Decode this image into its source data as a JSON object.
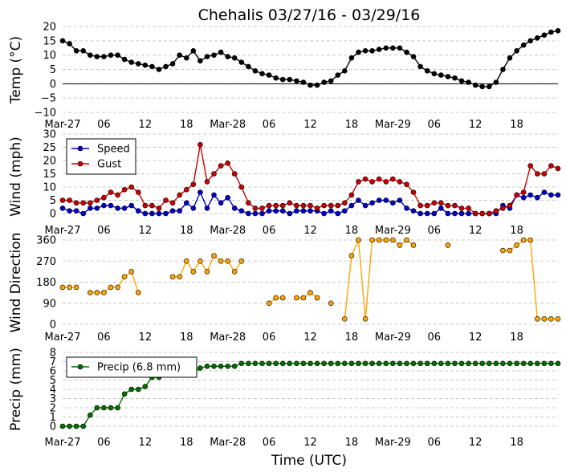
{
  "title": "Chehalis 03/27/16 - 03/29/16",
  "xlabel": "Time (UTC)",
  "x_tick_labels": [
    "Mar-27",
    "06",
    "12",
    "18",
    "Mar-28",
    "06",
    "12",
    "18",
    "Mar-29",
    "06",
    "12",
    "18"
  ],
  "colors": {
    "temp": "#000000",
    "speed": "#0000cc",
    "gust": "#cc0000",
    "direction": "#ffa500",
    "precip": "#007000"
  },
  "chart_data": [
    {
      "type": "line",
      "ylabel": "Temp (°C)",
      "ylim": [
        -10,
        20
      ],
      "yticks": [
        "−10",
        "−5",
        "0",
        "5",
        "10",
        "15",
        "20"
      ],
      "zero_line": true,
      "x_hours": [
        0,
        1,
        2,
        3,
        4,
        5,
        6,
        7,
        8,
        9,
        10,
        11,
        12,
        13,
        14,
        15,
        16,
        17,
        18,
        19,
        20,
        21,
        22,
        23,
        24,
        25,
        26,
        27,
        28,
        29,
        30,
        31,
        32,
        33,
        34,
        35,
        36,
        37,
        38,
        39,
        40,
        41,
        42,
        43,
        44,
        45,
        46,
        47,
        48,
        49,
        50,
        51,
        52,
        53,
        54,
        55,
        56,
        57,
        58,
        59,
        60,
        61,
        62,
        63,
        64,
        65,
        66,
        67,
        68,
        69,
        70,
        71,
        72
      ],
      "series": [
        {
          "values": [
            15.0,
            14.0,
            11.5,
            11.5,
            10.0,
            9.5,
            9.5,
            10.0,
            10.0,
            8.5,
            7.5,
            7.0,
            6.5,
            6.0,
            5.0,
            6.0,
            7.0,
            10.0,
            9.0,
            11.5,
            8.0,
            9.5,
            10.0,
            11.0,
            9.5,
            9.0,
            7.5,
            6.0,
            4.5,
            3.5,
            3.0,
            2.0,
            1.5,
            1.5,
            1.0,
            0.5,
            -0.5,
            -0.5,
            0.5,
            1.0,
            3.0,
            4.5,
            9.0,
            11.0,
            11.5,
            11.5,
            12.0,
            12.5,
            12.5,
            12.5,
            11.0,
            9.5,
            6.0,
            4.5,
            3.5,
            3.0,
            2.5,
            2.0,
            1.0,
            0.5,
            -0.5,
            -1.0,
            -1.0,
            0.5,
            5.0,
            9.0,
            11.5,
            13.5,
            15.0,
            16.0,
            17.0,
            18.0,
            18.5
          ]
        }
      ]
    },
    {
      "type": "line",
      "ylabel": "Wind (mph)",
      "ylim": [
        0,
        30
      ],
      "yticks": [
        "0",
        "5",
        "10",
        "15",
        "20",
        "25",
        "30"
      ],
      "legend": "upper left",
      "x_hours": [
        0,
        1,
        2,
        3,
        4,
        5,
        6,
        7,
        8,
        9,
        10,
        11,
        12,
        13,
        14,
        15,
        16,
        17,
        18,
        19,
        20,
        21,
        22,
        23,
        24,
        25,
        26,
        27,
        28,
        29,
        30,
        31,
        32,
        33,
        34,
        35,
        36,
        37,
        38,
        39,
        40,
        41,
        42,
        43,
        44,
        45,
        46,
        47,
        48,
        49,
        50,
        51,
        52,
        53,
        54,
        55,
        56,
        57,
        58,
        59,
        60,
        61,
        62,
        63,
        64,
        65,
        66,
        67,
        68,
        69,
        70,
        71,
        72
      ],
      "series": [
        {
          "name": "Speed",
          "values": [
            2,
            1,
            1,
            0,
            2,
            2,
            3,
            3,
            2,
            2,
            3,
            1,
            0,
            0,
            0,
            0,
            1,
            1,
            4,
            2,
            8,
            2,
            7,
            4,
            6,
            2,
            1,
            0,
            0,
            0,
            1,
            1,
            1,
            0,
            1,
            1,
            1,
            1,
            0,
            1,
            0,
            1,
            3,
            5,
            3,
            4,
            5,
            5,
            4,
            5,
            2,
            1,
            0,
            0,
            0,
            2,
            0,
            0,
            0,
            0,
            0,
            0,
            0,
            0,
            3,
            2,
            7,
            6,
            7,
            6,
            8,
            7,
            7
          ]
        },
        {
          "name": "Gust",
          "values": [
            5,
            5,
            4,
            4,
            4,
            5,
            6,
            8,
            7,
            9,
            10,
            8,
            3,
            3,
            2,
            5,
            4,
            7,
            9,
            11,
            26,
            12,
            15,
            18,
            19,
            15,
            10,
            4,
            2,
            2,
            3,
            3,
            3,
            4,
            3,
            3,
            3,
            2,
            3,
            3,
            3,
            4,
            7,
            12,
            13,
            12,
            13,
            12,
            13,
            12,
            11,
            8,
            3,
            3,
            4,
            4,
            3,
            3,
            2,
            2,
            0,
            0,
            0,
            1,
            2,
            3,
            7,
            8,
            18,
            15,
            15,
            18,
            17
          ]
        }
      ]
    },
    {
      "type": "scatter",
      "ylabel": "Wind Direction",
      "ylim": [
        0,
        360
      ],
      "yticks": [
        "0",
        "90",
        "180",
        "270",
        "360"
      ],
      "x_hours": [
        0,
        1,
        2,
        3,
        4,
        5,
        6,
        7,
        8,
        9,
        10,
        11,
        12,
        13,
        14,
        15,
        16,
        17,
        18,
        19,
        20,
        21,
        22,
        23,
        24,
        25,
        26,
        27,
        28,
        29,
        30,
        31,
        32,
        33,
        34,
        35,
        36,
        37,
        38,
        39,
        40,
        41,
        42,
        43,
        44,
        45,
        46,
        47,
        48,
        49,
        50,
        51,
        52,
        53,
        54,
        55,
        56,
        57,
        58,
        59,
        60,
        61,
        62,
        63,
        64,
        65,
        66,
        67,
        68,
        69,
        70,
        71,
        72
      ],
      "series": [
        {
          "values": [
            158,
            158,
            158,
            null,
            135,
            135,
            135,
            158,
            158,
            203,
            225,
            135,
            null,
            null,
            null,
            null,
            203,
            203,
            270,
            225,
            270,
            225,
            293,
            270,
            270,
            225,
            270,
            null,
            null,
            null,
            90,
            113,
            113,
            null,
            113,
            113,
            135,
            113,
            null,
            90,
            null,
            23,
            293,
            360,
            23,
            360,
            360,
            360,
            360,
            338,
            360,
            338,
            null,
            null,
            null,
            null,
            338,
            null,
            null,
            null,
            null,
            null,
            null,
            null,
            315,
            315,
            338,
            360,
            360,
            23,
            23,
            23,
            23
          ]
        }
      ]
    },
    {
      "type": "line",
      "ylabel": "Precip (mm)",
      "ylim": [
        0,
        8
      ],
      "yticks": [
        "0",
        "1",
        "2",
        "3",
        "4",
        "5",
        "6",
        "7",
        "8"
      ],
      "legend": "upper left",
      "x_hours": [
        0,
        1,
        2,
        3,
        4,
        5,
        6,
        7,
        8,
        9,
        10,
        11,
        12,
        13,
        14,
        15,
        16,
        17,
        18,
        19,
        20,
        21,
        22,
        23,
        24,
        25,
        26,
        27,
        28,
        29,
        30,
        31,
        32,
        33,
        34,
        35,
        36,
        37,
        38,
        39,
        40,
        41,
        42,
        43,
        44,
        45,
        46,
        47,
        48,
        49,
        50,
        51,
        52,
        53,
        54,
        55,
        56,
        57,
        58,
        59,
        60,
        61,
        62,
        63,
        64,
        65,
        66,
        67,
        68,
        69,
        70,
        71,
        72
      ],
      "series": [
        {
          "name": "Precip (6.8 mm)",
          "values": [
            0,
            0,
            0,
            0,
            1.2,
            2.0,
            2.0,
            2.0,
            2.0,
            3.5,
            4.0,
            4.0,
            4.3,
            5.3,
            5.3,
            5.6,
            5.6,
            5.6,
            5.8,
            5.8,
            6.3,
            6.5,
            6.5,
            6.5,
            6.5,
            6.5,
            6.8,
            6.8,
            6.8,
            6.8,
            6.8,
            6.8,
            6.8,
            6.8,
            6.8,
            6.8,
            6.8,
            6.8,
            6.8,
            6.8,
            6.8,
            6.8,
            6.8,
            6.8,
            6.8,
            6.8,
            6.8,
            6.8,
            6.8,
            6.8,
            6.8,
            6.8,
            6.8,
            6.8,
            6.8,
            6.8,
            6.8,
            6.8,
            6.8,
            6.8,
            6.8,
            6.8,
            6.8,
            6.8,
            6.8,
            6.8,
            6.8,
            6.8,
            6.8,
            6.8,
            6.8,
            6.8,
            6.8
          ]
        }
      ]
    }
  ]
}
